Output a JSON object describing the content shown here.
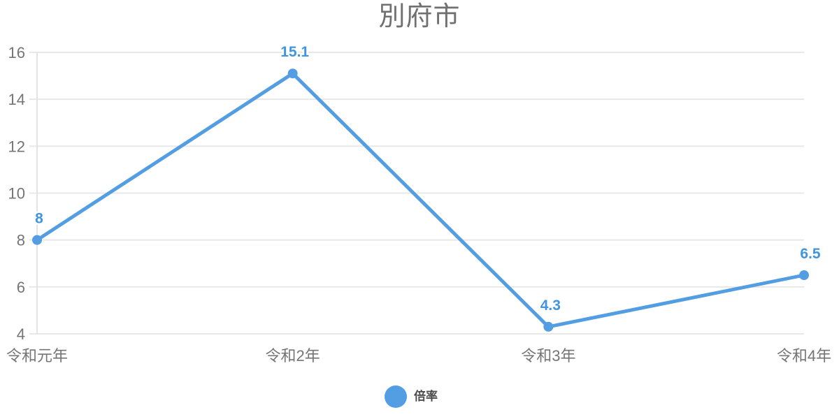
{
  "title": "別府市",
  "legend": {
    "label": "倍率"
  },
  "colors": {
    "series": "#539ee2",
    "data_label": "#4095e0",
    "grid": "#e8e8e8",
    "axis_line": "#e3e3e3",
    "axis_text": "#757575",
    "title_text": "#707070",
    "legend_text": "#4c4c4c",
    "background": "#ffffff"
  },
  "chart_data": {
    "type": "line",
    "title": "別府市",
    "categories": [
      "令和元年",
      "令和2年",
      "令和3年",
      "令和4年"
    ],
    "series": [
      {
        "name": "倍率",
        "values": [
          8,
          15.1,
          4.3,
          6.5
        ]
      }
    ],
    "data_labels": [
      "8",
      "15.1",
      "4.3",
      "6.5"
    ],
    "xlabel": "",
    "ylabel": "",
    "ylim": [
      4,
      16
    ],
    "yticks": [
      4,
      6,
      8,
      10,
      12,
      14,
      16
    ],
    "grid": true,
    "legend_position": "bottom",
    "marker": "circle",
    "line_width": 5
  }
}
